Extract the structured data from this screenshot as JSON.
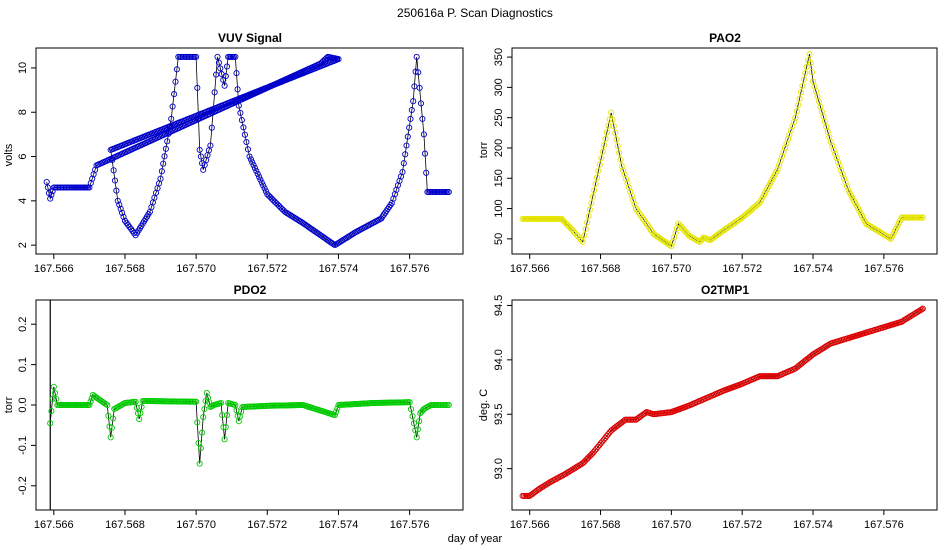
{
  "suptitle": "250616a   P. Scan Diagnostics",
  "xlabel": "day of year",
  "chart_data": [
    {
      "type": "line",
      "title": "VUV Signal",
      "xlabel": "",
      "ylabel": "volts",
      "xlim": [
        167.5655,
        167.5775
      ],
      "ylim": [
        1.6,
        10.9
      ],
      "xticks": [
        "167.566",
        "167.568",
        "167.570",
        "167.572",
        "167.574",
        "167.576"
      ],
      "yticks": [
        "2",
        "4",
        "6",
        "8",
        "10"
      ],
      "marker_color": "#0000ff",
      "points": [
        [
          167.5658,
          4.85
        ],
        [
          167.5659,
          4.1
        ],
        [
          167.566,
          4.6
        ],
        [
          167.5665,
          4.6
        ],
        [
          167.567,
          4.6
        ],
        [
          167.5672,
          5.6
        ],
        [
          167.5735,
          10.2
        ],
        [
          167.5737,
          10.5
        ],
        [
          167.574,
          10.4
        ],
        [
          167.5676,
          6.3
        ],
        [
          167.5678,
          4.0
        ],
        [
          167.568,
          3.1
        ],
        [
          167.5683,
          2.45
        ],
        [
          167.5687,
          3.5
        ],
        [
          167.569,
          5.0
        ],
        [
          167.5693,
          7.7
        ],
        [
          167.5695,
          10.5
        ],
        [
          167.57,
          10.5
        ],
        [
          167.5701,
          6.3
        ],
        [
          167.5702,
          5.4
        ],
        [
          167.5704,
          6.5
        ],
        [
          167.5706,
          10.5
        ],
        [
          167.5708,
          9.2
        ],
        [
          167.5709,
          10.5
        ],
        [
          167.5711,
          10.5
        ],
        [
          167.5712,
          8.3
        ],
        [
          167.5715,
          6.0
        ],
        [
          167.572,
          4.3
        ],
        [
          167.5725,
          3.5
        ],
        [
          167.573,
          3.0
        ],
        [
          167.5739,
          2.0
        ],
        [
          167.5745,
          2.6
        ],
        [
          167.5752,
          3.2
        ],
        [
          167.5755,
          3.9
        ],
        [
          167.5758,
          5.3
        ],
        [
          167.5761,
          8.5
        ],
        [
          167.5762,
          10.5
        ],
        [
          167.5764,
          7.0
        ],
        [
          167.5765,
          4.4
        ],
        [
          167.5771,
          4.4
        ]
      ]
    },
    {
      "type": "line",
      "title": "PAO2",
      "xlabel": "",
      "ylabel": "torr",
      "xlim": [
        167.5655,
        167.5775
      ],
      "ylim": [
        25,
        365
      ],
      "xticks": [
        "167.566",
        "167.568",
        "167.570",
        "167.572",
        "167.574",
        "167.576"
      ],
      "yticks": [
        "50",
        "100",
        "150",
        "200",
        "250",
        "300",
        "350"
      ],
      "marker_color": "#ffff00",
      "points": [
        [
          167.5658,
          83
        ],
        [
          167.5669,
          83
        ],
        [
          167.5672,
          65
        ],
        [
          167.5675,
          45
        ],
        [
          167.5683,
          258
        ],
        [
          167.5686,
          170
        ],
        [
          167.569,
          100
        ],
        [
          167.5695,
          58
        ],
        [
          167.57,
          38
        ],
        [
          167.5702,
          75
        ],
        [
          167.5705,
          55
        ],
        [
          167.5708,
          45
        ],
        [
          167.5709,
          52
        ],
        [
          167.5711,
          48
        ],
        [
          167.5715,
          65
        ],
        [
          167.572,
          85
        ],
        [
          167.5725,
          110
        ],
        [
          167.573,
          165
        ],
        [
          167.5735,
          250
        ],
        [
          167.5739,
          355
        ],
        [
          167.574,
          310
        ],
        [
          167.5745,
          210
        ],
        [
          167.575,
          130
        ],
        [
          167.5755,
          75
        ],
        [
          167.5762,
          50
        ],
        [
          167.5765,
          85
        ],
        [
          167.5771,
          85
        ]
      ]
    },
    {
      "type": "line",
      "title": "PDO2",
      "xlabel": "",
      "ylabel": "torr",
      "xlim": [
        167.5655,
        167.5775
      ],
      "ylim": [
        -0.26,
        0.26
      ],
      "xticks": [
        "167.566",
        "167.568",
        "167.570",
        "167.572",
        "167.574",
        "167.576"
      ],
      "yticks": [
        "-0.2",
        "-0.1",
        "0.0",
        "0.1",
        "0.2"
      ],
      "marker_color": "#00ee00",
      "points": [
        [
          167.5659,
          -0.045
        ],
        [
          167.566,
          0.045
        ],
        [
          167.5661,
          0.0
        ],
        [
          167.567,
          0.0
        ],
        [
          167.5671,
          0.025
        ],
        [
          167.5673,
          0.012
        ],
        [
          167.5675,
          0.0
        ],
        [
          167.5676,
          -0.08
        ],
        [
          167.5677,
          -0.01
        ],
        [
          167.568,
          0.005
        ],
        [
          167.5683,
          0.008
        ],
        [
          167.5684,
          -0.035
        ],
        [
          167.5685,
          0.01
        ],
        [
          167.57,
          0.008
        ],
        [
          167.5701,
          -0.145
        ],
        [
          167.5702,
          -0.03
        ],
        [
          167.5703,
          0.03
        ],
        [
          167.5704,
          -0.005
        ],
        [
          167.5705,
          0.0
        ],
        [
          167.5707,
          0.005
        ],
        [
          167.5708,
          -0.085
        ],
        [
          167.5709,
          0.005
        ],
        [
          167.5711,
          0.0
        ],
        [
          167.5712,
          -0.04
        ],
        [
          167.5713,
          -0.005
        ],
        [
          167.572,
          -0.002
        ],
        [
          167.573,
          0.0
        ],
        [
          167.5739,
          -0.025
        ],
        [
          167.574,
          0.0
        ],
        [
          167.575,
          0.005
        ],
        [
          167.576,
          0.007
        ],
        [
          167.5762,
          -0.08
        ],
        [
          167.5763,
          -0.02
        ],
        [
          167.5764,
          -0.01
        ],
        [
          167.5766,
          0.0
        ],
        [
          167.5771,
          0.0
        ]
      ],
      "spikes": [
        [
          167.5659,
          -0.26,
          0.26
        ]
      ]
    },
    {
      "type": "line",
      "title": "O2TMP1",
      "xlabel": "",
      "ylabel": "deg. C",
      "xlim": [
        167.5655,
        167.5775
      ],
      "ylim": [
        92.62,
        94.55
      ],
      "xticks": [
        "167.566",
        "167.568",
        "167.570",
        "167.572",
        "167.574",
        "167.576"
      ],
      "yticks": [
        "93.0",
        "93.5",
        "94.0",
        "94.5"
      ],
      "marker_color": "#ff0000",
      "points": [
        [
          167.5658,
          92.75
        ],
        [
          167.566,
          92.75
        ],
        [
          167.5663,
          92.82
        ],
        [
          167.5666,
          92.88
        ],
        [
          167.567,
          92.95
        ],
        [
          167.5675,
          93.05
        ],
        [
          167.5678,
          93.15
        ],
        [
          167.5683,
          93.35
        ],
        [
          167.5687,
          93.45
        ],
        [
          167.569,
          93.45
        ],
        [
          167.5693,
          93.52
        ],
        [
          167.5695,
          93.5
        ],
        [
          167.57,
          93.52
        ],
        [
          167.5705,
          93.58
        ],
        [
          167.571,
          93.65
        ],
        [
          167.5715,
          93.72
        ],
        [
          167.572,
          93.78
        ],
        [
          167.5725,
          93.85
        ],
        [
          167.573,
          93.85
        ],
        [
          167.5735,
          93.92
        ],
        [
          167.574,
          94.05
        ],
        [
          167.5745,
          94.15
        ],
        [
          167.575,
          94.2
        ],
        [
          167.5755,
          94.25
        ],
        [
          167.576,
          94.3
        ],
        [
          167.5765,
          94.35
        ],
        [
          167.577,
          94.45
        ],
        [
          167.5771,
          94.47
        ]
      ]
    }
  ]
}
